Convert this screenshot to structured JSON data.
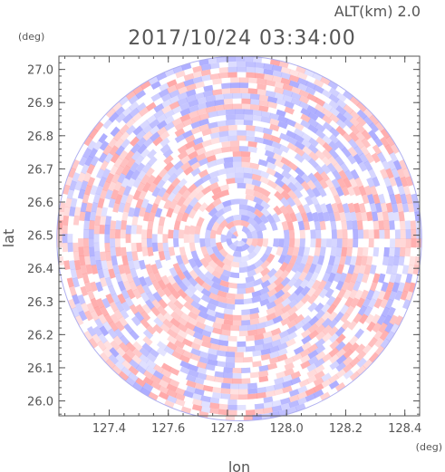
{
  "header": {
    "altitude": "ALT(km)  2.0",
    "timestamp": "2017/10/24 03:34:00"
  },
  "colors": {
    "axis": "#555555",
    "positive": "#ff8c8c",
    "negative": "#9090ff"
  },
  "chart_data": {
    "type": "heatmap",
    "title": "",
    "xlabel": "lon",
    "ylabel": "lat",
    "x_unit": "(deg)",
    "y_unit": "(deg)",
    "xlim": [
      127.23,
      128.45
    ],
    "ylim": [
      25.955,
      27.04
    ],
    "x_ticks": [
      127.4,
      127.6,
      127.8,
      128.0,
      128.2,
      128.4
    ],
    "x_tick_labels": [
      "127.4",
      "127.6",
      "127.8",
      "128.0",
      "128.2",
      "128.4"
    ],
    "y_ticks": [
      26.0,
      26.1,
      26.2,
      26.3,
      26.4,
      26.5,
      26.6,
      26.7,
      26.8,
      26.9,
      27.0
    ],
    "y_tick_labels": [
      "26.0",
      "26.1",
      "26.2",
      "26.3",
      "26.4",
      "26.5",
      "26.6",
      "26.7",
      "26.8",
      "26.9",
      "27.0"
    ],
    "radar_center": [
      127.84,
      26.49
    ],
    "radar_range_deg_lat": 0.55,
    "colorscale": "diverging red-white-blue radial velocity field"
  }
}
